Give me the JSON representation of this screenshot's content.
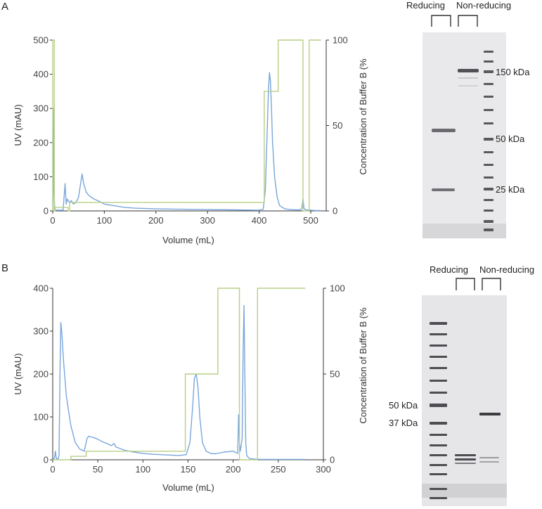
{
  "panels": [
    {
      "letter": "A",
      "chart_data": {
        "type": "line",
        "xlabel": "Volume (mL)",
        "ylabel": "UV (mAU)",
        "y2label": "Concentration  of Buffer B (%",
        "xlim": [
          0,
          530
        ],
        "ylim": [
          0,
          500
        ],
        "y2lim": [
          0,
          100
        ],
        "xticks": [
          0,
          100,
          200,
          300,
          400,
          500
        ],
        "yticks": [
          0,
          100,
          200,
          300,
          400,
          500
        ],
        "y2ticks": [
          0,
          50,
          100
        ],
        "grid": false,
        "series": [
          {
            "axis": "left",
            "color": "#7aa6dc",
            "x": [
              0,
              1,
              2,
              3,
              4,
              5,
              20,
              24,
              26,
              28,
              32,
              36,
              40,
              45,
              50,
              55,
              57,
              60,
              65,
              70,
              80,
              90,
              100,
              120,
              140,
              160,
              200,
              250,
              300,
              350,
              400,
              408,
              412,
              415,
              418,
              420,
              422,
              424,
              426,
              430,
              435,
              440,
              450,
              460,
              470,
              480,
              483,
              485,
              487,
              490,
              500,
              510,
              520
            ],
            "y": [
              0,
              50,
              300,
              40,
              5,
              2,
              2,
              80,
              20,
              35,
              25,
              30,
              20,
              25,
              40,
              90,
              108,
              80,
              55,
              45,
              35,
              28,
              20,
              15,
              10,
              8,
              6,
              5,
              4,
              3,
              2,
              5,
              60,
              200,
              350,
              405,
              380,
              300,
              200,
              100,
              40,
              15,
              6,
              4,
              3,
              3,
              10,
              35,
              8,
              3,
              2,
              1,
              1
            ]
          },
          {
            "axis": "right",
            "color": "#b7cf86",
            "x": [
              0,
              0,
              3,
              3,
              5,
              5,
              30,
              30,
              33,
              33,
              410,
              410,
              437,
              437,
              485,
              485,
              497,
              497,
              520
            ],
            "y": [
              0,
              100,
              100,
              0,
              0,
              2,
              2,
              0,
              0,
              5,
              5,
              70,
              70,
              100,
              100,
              0,
              0,
              100,
              100
            ]
          }
        ]
      },
      "gel": {
        "label_reducing": "Reducing",
        "label_nonreducing": "Non-reducing",
        "markers": [
          "150 kDa",
          "50 kDa",
          "25 kDa"
        ]
      }
    },
    {
      "letter": "B",
      "chart_data": {
        "type": "line",
        "xlabel": "Volume (mL)",
        "ylabel": "UV (mAU)",
        "y2label": "Concentration  of Buffer B (%",
        "xlim": [
          0,
          300
        ],
        "ylim": [
          0,
          400
        ],
        "y2lim": [
          0,
          100
        ],
        "xticks": [
          0,
          50,
          100,
          150,
          200,
          250,
          300
        ],
        "yticks": [
          0,
          100,
          200,
          300,
          400
        ],
        "y2ticks": [
          0,
          50,
          100
        ],
        "grid": false,
        "series": [
          {
            "axis": "left",
            "color": "#7aa6dc",
            "x": [
              0,
              2,
              3,
              4,
              6,
              7,
              8,
              9,
              10,
              12,
              15,
              20,
              25,
              30,
              35,
              38,
              40,
              45,
              50,
              55,
              60,
              65,
              68,
              70,
              75,
              80,
              90,
              100,
              110,
              120,
              130,
              140,
              148,
              152,
              155,
              157,
              159,
              161,
              163,
              166,
              170,
              175,
              180,
              190,
              200,
              205,
              206,
              207,
              208,
              210,
              211,
              212,
              213,
              214,
              215,
              218,
              222,
              230,
              250,
              280
            ],
            "y": [
              0,
              5,
              20,
              3,
              2,
              10,
              200,
              320,
              300,
              230,
              150,
              80,
              40,
              25,
              20,
              50,
              55,
              52,
              48,
              42,
              38,
              33,
              38,
              30,
              26,
              22,
              18,
              15,
              13,
              12,
              11,
              10,
              12,
              40,
              120,
              190,
              200,
              170,
              100,
              40,
              20,
              15,
              14,
              18,
              20,
              15,
              105,
              40,
              20,
              50,
              250,
              360,
              200,
              40,
              10,
              3,
              2,
              1,
              1,
              1
            ]
          },
          {
            "axis": "right",
            "color": "#b7cf86",
            "x": [
              0,
              20,
              20,
              37,
              37,
              147,
              147,
              183,
              183,
              207,
              207,
              227,
              227,
              280
            ],
            "y": [
              0,
              0,
              2,
              2,
              5,
              5,
              50,
              50,
              100,
              100,
              0,
              0,
              100,
              100
            ]
          }
        ]
      },
      "gel": {
        "label_reducing": "Reducing",
        "label_nonreducing": "Non-reducing",
        "markers": [
          "50 kDa",
          "37 kDa"
        ]
      }
    }
  ]
}
